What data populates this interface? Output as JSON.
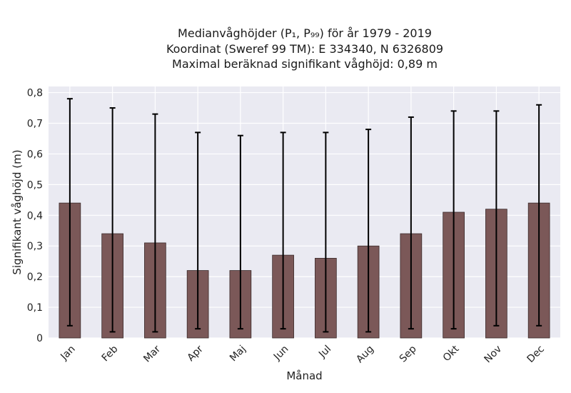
{
  "chart_data": {
    "type": "bar",
    "title_lines": [
      "Medianvåghöjder (P₁, P₉₉) för år 1979 - 2019",
      "Koordinat (Sweref 99 TM): E 334340, N 6326809",
      "Maximal beräknad signifikant våghöjd: 0,89 m"
    ],
    "xlabel": "Månad",
    "ylabel": "Signifikant våghöjd (m)",
    "categories": [
      "Jan",
      "Feb",
      "Mar",
      "Apr",
      "Maj",
      "Jun",
      "Jul",
      "Aug",
      "Sep",
      "Okt",
      "Nov",
      "Dec"
    ],
    "series": [
      {
        "values": [
          0.44,
          0.34,
          0.31,
          0.22,
          0.22,
          0.27,
          0.26,
          0.3,
          0.34,
          0.41,
          0.42,
          0.44
        ],
        "error_low": [
          0.04,
          0.02,
          0.02,
          0.03,
          0.03,
          0.03,
          0.02,
          0.02,
          0.03,
          0.03,
          0.04,
          0.04
        ],
        "error_high": [
          0.78,
          0.75,
          0.73,
          0.67,
          0.66,
          0.67,
          0.67,
          0.68,
          0.72,
          0.74,
          0.74,
          0.76
        ]
      }
    ],
    "ylim": [
      0,
      0.82
    ],
    "yticks": [
      0,
      0.1,
      0.2,
      0.3,
      0.4,
      0.5,
      0.6,
      0.7,
      0.8
    ],
    "ytick_labels": [
      "0",
      "0,1",
      "0,2",
      "0,3",
      "0,4",
      "0,5",
      "0,6",
      "0,7",
      "0,8"
    ],
    "grid": true,
    "colors": {
      "bar": "#7b5858",
      "bar_edge": "#3a2a2a",
      "error": "#000000",
      "plot_background": "#eaeaf2",
      "grid": "#ffffff"
    }
  }
}
